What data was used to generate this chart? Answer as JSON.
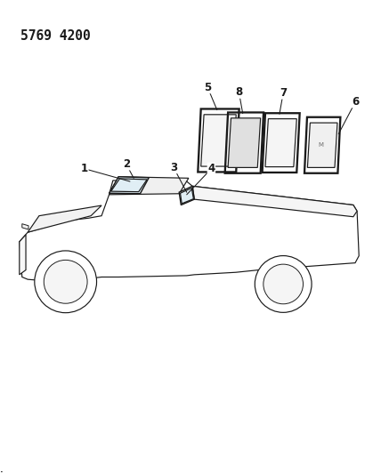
{
  "title": "5769 4200",
  "bg_color": "#ffffff",
  "line_color": "#1a1a1a",
  "title_fontsize": 10.5,
  "label_fontsize": 8.5,
  "lw": 0.85
}
